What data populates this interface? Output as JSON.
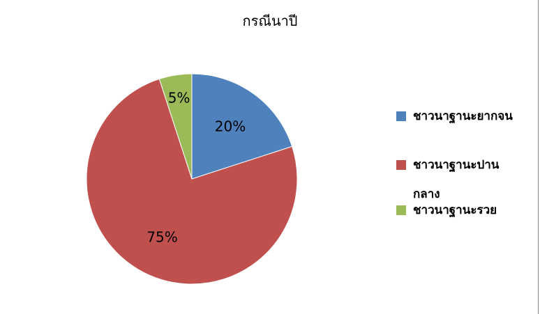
{
  "chart_data": {
    "type": "pie",
    "title": "กรณีนาปี",
    "start_angle": "top, clockwise",
    "series": [
      {
        "name": "ชาวนาฐานะยากจน",
        "value": 20,
        "label": "20%",
        "color": "#4F81BD"
      },
      {
        "name": "ชาวนาฐานะปานกลาง",
        "value": 75,
        "label": "75%",
        "color": "#C0504D"
      },
      {
        "name": "ชาวนาฐานะรวย",
        "value": 5,
        "label": "5%",
        "color": "#9BBB59"
      }
    ],
    "legend_position": "right"
  }
}
